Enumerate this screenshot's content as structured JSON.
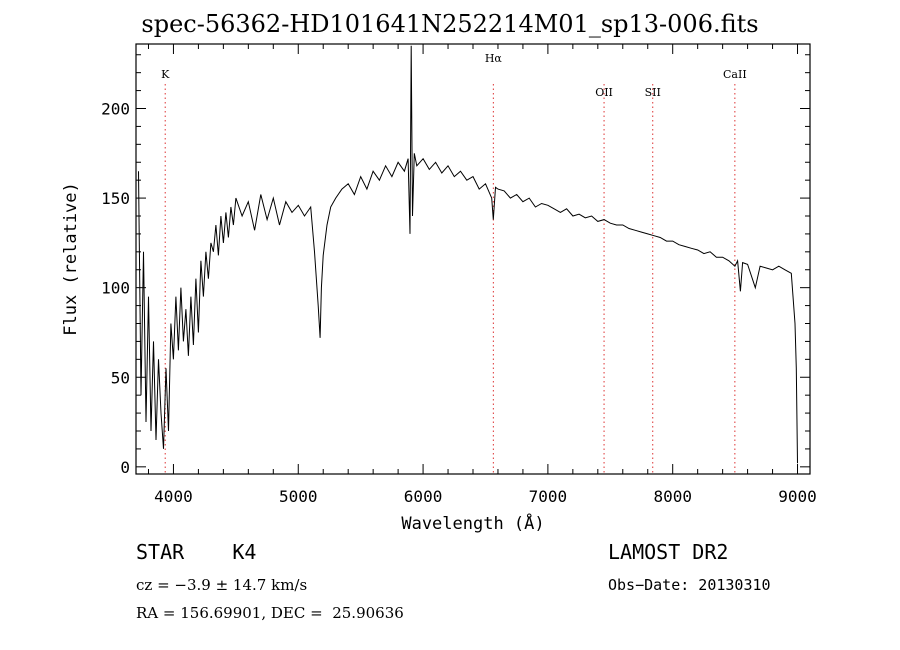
{
  "chart_data": {
    "type": "line",
    "title": "spec-56362-HD101641N252214M01_sp13-006.fits",
    "xlabel": "Wavelength (Å)",
    "ylabel": "Flux (relative)",
    "xlim": [
      3700,
      9100
    ],
    "ylim": [
      -4,
      236
    ],
    "x_ticks": [
      4000,
      5000,
      6000,
      7000,
      8000,
      9000
    ],
    "y_ticks": [
      0,
      50,
      100,
      150,
      200
    ],
    "grid": false,
    "line_color": "#000000",
    "marker_color": "#dd3333",
    "lines": [
      {
        "label": "K",
        "x": 3934
      },
      {
        "label": "Hα",
        "x": 6563
      },
      {
        "label": "OII",
        "x": 7450
      },
      {
        "label": "SII",
        "x": 7840
      },
      {
        "label": "CaII",
        "x": 8498
      }
    ],
    "series": [
      {
        "x": [
          3720,
          3740,
          3760,
          3780,
          3800,
          3820,
          3840,
          3860,
          3880,
          3900,
          3920,
          3940,
          3960,
          3980,
          4000,
          4020,
          4040,
          4060,
          4080,
          4100,
          4120,
          4140,
          4160,
          4180,
          4200,
          4220,
          4240,
          4260,
          4280,
          4300,
          4320,
          4340,
          4360,
          4380,
          4400,
          4420,
          4440,
          4460,
          4480,
          4500,
          4550,
          4600,
          4650,
          4700,
          4750,
          4800,
          4850,
          4900,
          4950,
          5000,
          5050,
          5100,
          5130,
          5160,
          5175,
          5185,
          5200,
          5230,
          5260,
          5300,
          5350,
          5400,
          5450,
          5500,
          5550,
          5600,
          5650,
          5700,
          5750,
          5800,
          5850,
          5880,
          5895,
          5905,
          5915,
          5930,
          5950,
          6000,
          6050,
          6100,
          6150,
          6200,
          6250,
          6300,
          6350,
          6400,
          6450,
          6500,
          6550,
          6563,
          6580,
          6600,
          6650,
          6700,
          6750,
          6800,
          6850,
          6900,
          6950,
          7000,
          7050,
          7100,
          7150,
          7200,
          7250,
          7300,
          7350,
          7400,
          7450,
          7500,
          7550,
          7600,
          7650,
          7700,
          7750,
          7800,
          7850,
          7900,
          7950,
          8000,
          8050,
          8100,
          8150,
          8200,
          8250,
          8300,
          8350,
          8400,
          8450,
          8498,
          8520,
          8542,
          8560,
          8600,
          8662,
          8700,
          8750,
          8800,
          8850,
          8900,
          8950,
          8980,
          8990,
          9000
        ],
        "y": [
          165,
          40,
          120,
          25,
          95,
          20,
          70,
          15,
          60,
          30,
          10,
          55,
          20,
          80,
          60,
          95,
          65,
          100,
          70,
          88,
          62,
          95,
          68,
          105,
          75,
          115,
          95,
          120,
          105,
          125,
          120,
          135,
          118,
          140,
          125,
          142,
          128,
          145,
          135,
          150,
          140,
          148,
          132,
          152,
          138,
          150,
          135,
          148,
          142,
          146,
          140,
          145,
          120,
          90,
          72,
          100,
          118,
          135,
          145,
          150,
          155,
          158,
          152,
          162,
          155,
          165,
          160,
          168,
          162,
          170,
          165,
          172,
          130,
          235,
          140,
          175,
          168,
          172,
          166,
          170,
          164,
          168,
          162,
          165,
          160,
          162,
          155,
          158,
          150,
          138,
          156,
          155,
          154,
          150,
          152,
          148,
          150,
          145,
          147,
          146,
          144,
          142,
          144,
          140,
          141,
          139,
          140,
          137,
          138,
          136,
          135,
          135,
          133,
          132,
          131,
          130,
          129,
          128,
          126,
          126,
          124,
          123,
          122,
          121,
          119,
          120,
          117,
          117,
          115,
          112,
          115,
          98,
          114,
          113,
          100,
          112,
          111,
          110,
          112,
          110,
          108,
          80,
          55,
          2
        ]
      }
    ]
  },
  "info": {
    "classification": "STAR    K4",
    "survey": "LAMOST DR2",
    "cz_text": "cz = −3.9 ± 14.7 km/s",
    "obs_date": "Obs−Date: 20130310",
    "radec_text": "RA = 156.69901, DEC =  25.90636"
  }
}
